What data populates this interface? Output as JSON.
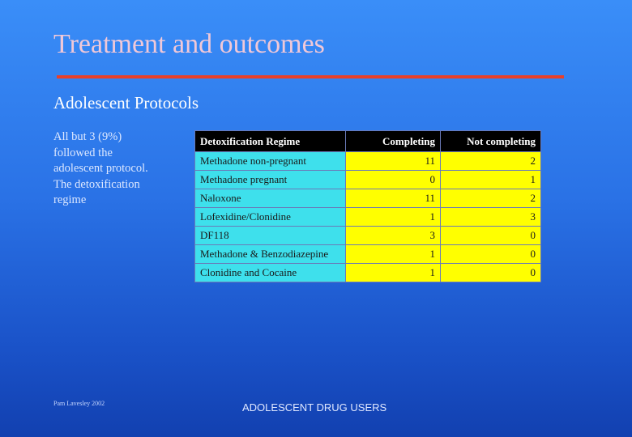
{
  "slide": {
    "title": "Treatment and outcomes",
    "subtitle": "Adolescent Protocols",
    "body_lines": [
      "All but 3 (9%)",
      "followed the",
      "adolescent protocol.",
      "The detoxification",
      "regime"
    ],
    "footer_left": "Pam Lavesley 2002",
    "footer_center": "ADOLESCENT DRUG USERS"
  },
  "table": {
    "headers": [
      "Detoxification Regime",
      "Completing",
      "Not completing"
    ],
    "rows": [
      [
        "Methadone non-pregnant",
        "11",
        "2"
      ],
      [
        "Methadone pregnant",
        "0",
        "1"
      ],
      [
        "Naloxone",
        "11",
        "2"
      ],
      [
        "Lofexidine/Clonidine",
        "1",
        "3"
      ],
      [
        "DF118",
        "3",
        "0"
      ],
      [
        "Methadone & Benzodiazepine",
        "1",
        "0"
      ],
      [
        "Clonidine and Cocaine",
        "1",
        "0"
      ]
    ]
  },
  "colors": {
    "background": "#2a72e6",
    "title": "#f0c8d8",
    "rule": "#e8402a",
    "regime_cell": "#3ee0ec",
    "value_cell": "#ffff00",
    "header": "#000000"
  }
}
